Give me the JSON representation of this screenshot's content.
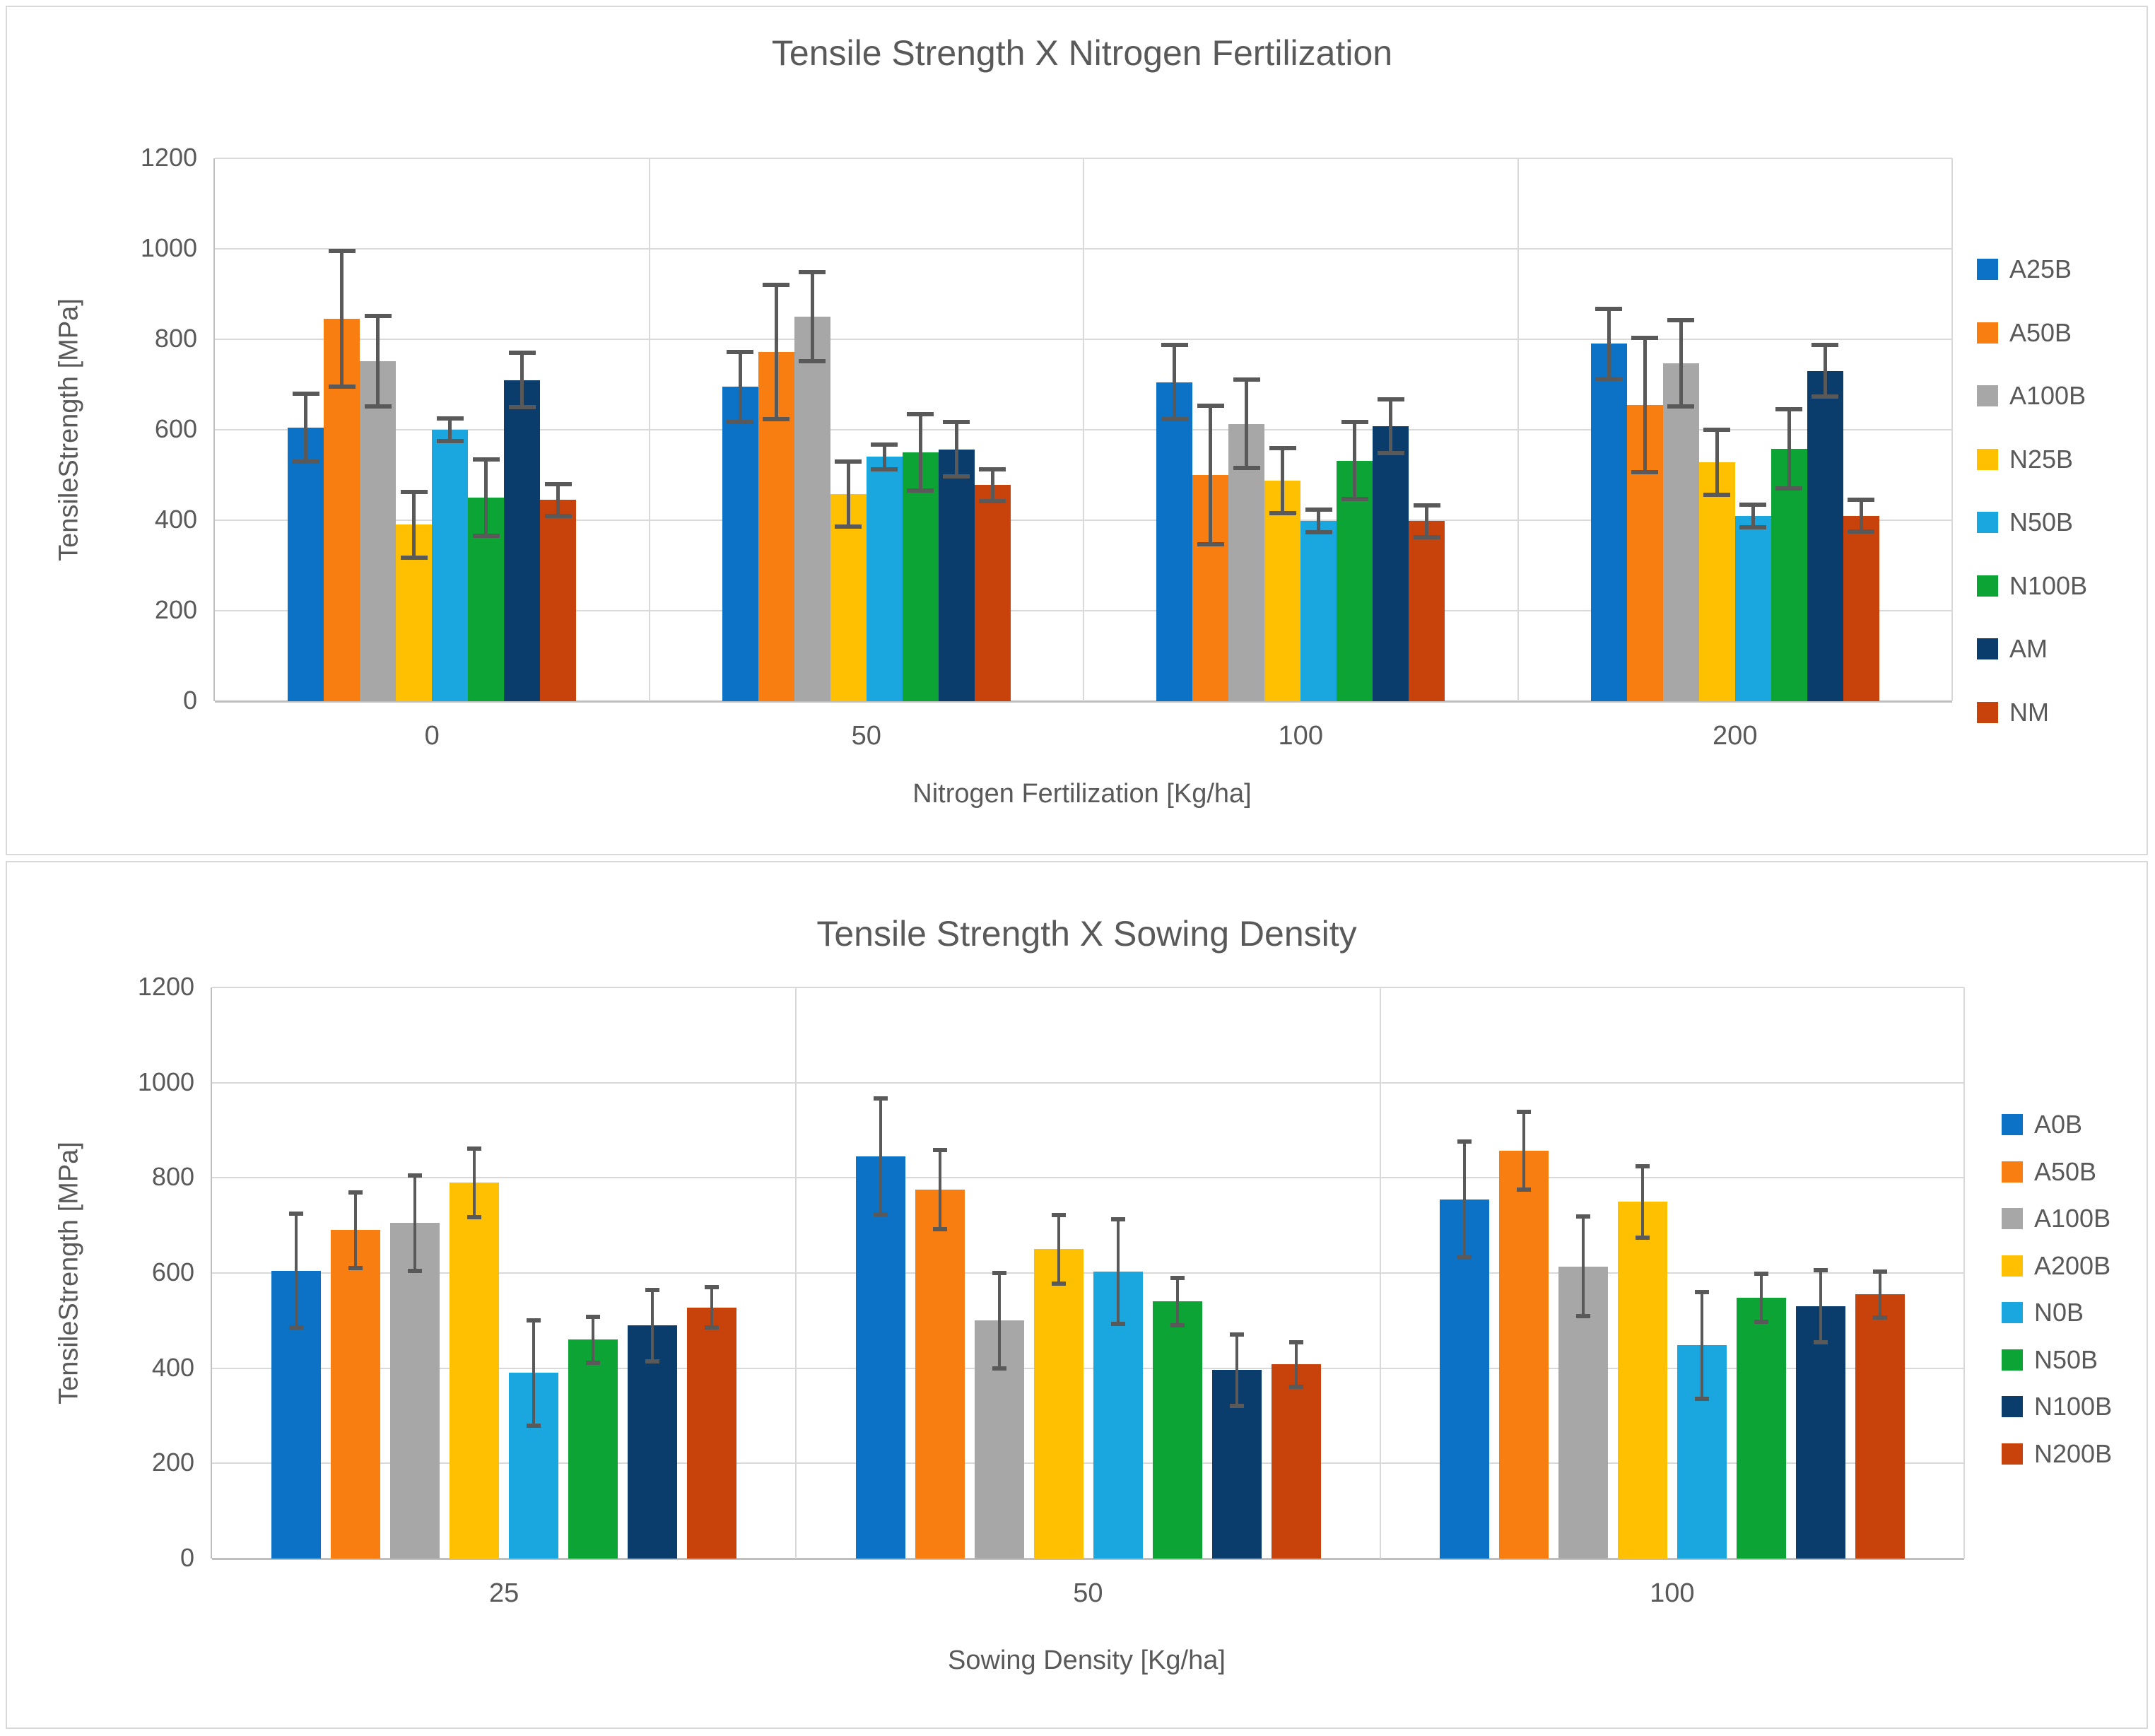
{
  "colors": {
    "background": "#FFFFFF",
    "panel_border": "#D9D9D9",
    "gridline": "#D9D9D9",
    "axis_line": "#BFBFBF",
    "text": "#595959",
    "error_bar": "#595959"
  },
  "chart_data": [
    {
      "type": "bar",
      "title": "Tensile Strength X Nitrogen Fertilization",
      "xlabel": "Nitrogen Fertilization [Kg/ha]",
      "ylabel": "TensileStrength [MPa]",
      "ylim": [
        0,
        1200
      ],
      "ystep": 200,
      "yticks": [
        0,
        200,
        400,
        600,
        800,
        1000,
        1200
      ],
      "grid": true,
      "legend_position": "right",
      "error_bars": true,
      "categories": [
        "0",
        "50",
        "100",
        "200"
      ],
      "series": [
        {
          "name": "A25B",
          "color": "#0B72C6",
          "values": [
            605,
            695,
            705,
            790
          ],
          "errors": [
            75,
            77,
            82,
            78
          ]
        },
        {
          "name": "A50B",
          "color": "#F87E11",
          "values": [
            845,
            772,
            500,
            655
          ],
          "errors": [
            150,
            148,
            153,
            148
          ]
        },
        {
          "name": "A100B",
          "color": "#A7A7A7",
          "values": [
            752,
            850,
            613,
            747
          ],
          "errors": [
            100,
            98,
            98,
            95
          ]
        },
        {
          "name": "N25B",
          "color": "#FFC002",
          "values": [
            390,
            458,
            488,
            528
          ],
          "errors": [
            72,
            72,
            72,
            72
          ]
        },
        {
          "name": "N50B",
          "color": "#1AA7E0",
          "values": [
            600,
            540,
            398,
            410
          ],
          "errors": [
            25,
            28,
            25,
            25
          ]
        },
        {
          "name": "N100B",
          "color": "#0CA535",
          "values": [
            450,
            550,
            532,
            558
          ],
          "errors": [
            85,
            85,
            85,
            88
          ]
        },
        {
          "name": "AM",
          "color": "#0A3D6B",
          "values": [
            710,
            557,
            608,
            730
          ],
          "errors": [
            60,
            60,
            60,
            57
          ]
        },
        {
          "name": "NM",
          "color": "#C7430B",
          "values": [
            445,
            478,
            398,
            410
          ],
          "errors": [
            35,
            35,
            35,
            35
          ]
        }
      ]
    },
    {
      "type": "bar",
      "title": "Tensile Strength X Sowing Density",
      "xlabel": "Sowing Density [Kg/ha]",
      "ylabel": "TensileStrength [MPa]",
      "ylim": [
        0,
        1200
      ],
      "ystep": 200,
      "yticks": [
        0,
        200,
        400,
        600,
        800,
        1000,
        1200
      ],
      "grid": true,
      "legend_position": "right",
      "error_bars": true,
      "categories": [
        "25",
        "50",
        "100"
      ],
      "series": [
        {
          "name": "A0B",
          "color": "#0B72C6",
          "values": [
            605,
            845,
            755
          ],
          "errors": [
            120,
            122,
            122
          ]
        },
        {
          "name": "A50B",
          "color": "#F87E11",
          "values": [
            690,
            775,
            857
          ],
          "errors": [
            80,
            83,
            82
          ]
        },
        {
          "name": "A100B",
          "color": "#A7A7A7",
          "values": [
            705,
            500,
            614
          ],
          "errors": [
            100,
            100,
            105
          ]
        },
        {
          "name": "A200B",
          "color": "#FFC002",
          "values": [
            790,
            650,
            750
          ],
          "errors": [
            72,
            72,
            75
          ]
        },
        {
          "name": "N0B",
          "color": "#1AA7E0",
          "values": [
            390,
            603,
            448
          ],
          "errors": [
            110,
            110,
            112
          ]
        },
        {
          "name": "N50B",
          "color": "#0CA535",
          "values": [
            460,
            540,
            548
          ],
          "errors": [
            48,
            50,
            50
          ]
        },
        {
          "name": "N100B",
          "color": "#0A3D6B",
          "values": [
            490,
            396,
            530
          ],
          "errors": [
            75,
            75,
            76
          ]
        },
        {
          "name": "N200B",
          "color": "#C7430B",
          "values": [
            528,
            408,
            555
          ],
          "errors": [
            42,
            47,
            48
          ]
        }
      ]
    }
  ]
}
